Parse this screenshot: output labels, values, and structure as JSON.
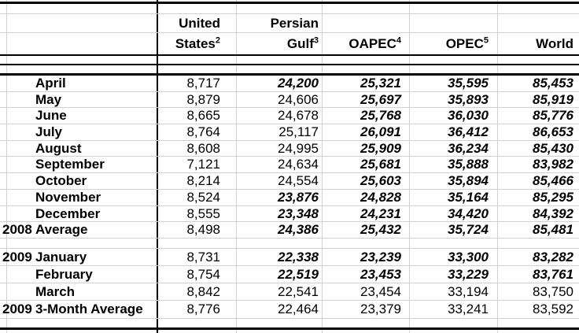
{
  "header": {
    "columns": [
      {
        "line1": "United",
        "line2": "States",
        "superscript": "2"
      },
      {
        "line1": "Persian",
        "line2": "Gulf",
        "superscript": "3"
      },
      {
        "line1": "",
        "line2": "OAPEC",
        "superscript": "4"
      },
      {
        "line1": "",
        "line2": "OPEC",
        "superscript": "5"
      },
      {
        "line1": "",
        "line2": "World",
        "superscript": ""
      }
    ]
  },
  "rows": [
    {
      "group": "2008",
      "year": "",
      "month": "April",
      "values": [
        "8,717",
        "24,200",
        "25,321",
        "35,595",
        "85,453"
      ],
      "emphasis": [
        false,
        true,
        true,
        true,
        true
      ]
    },
    {
      "group": "2008",
      "year": "",
      "month": "May",
      "values": [
        "8,879",
        "24,606",
        "25,697",
        "35,893",
        "85,919"
      ],
      "emphasis": [
        false,
        false,
        true,
        true,
        true
      ]
    },
    {
      "group": "2008",
      "year": "",
      "month": "June",
      "values": [
        "8,665",
        "24,678",
        "25,768",
        "36,030",
        "85,776"
      ],
      "emphasis": [
        false,
        false,
        true,
        true,
        true
      ]
    },
    {
      "group": "2008",
      "year": "",
      "month": "July",
      "values": [
        "8,764",
        "25,117",
        "26,091",
        "36,412",
        "86,653"
      ],
      "emphasis": [
        false,
        false,
        true,
        true,
        true
      ]
    },
    {
      "group": "2008",
      "year": "",
      "month": "August",
      "values": [
        "8,608",
        "24,995",
        "25,909",
        "36,234",
        "85,430"
      ],
      "emphasis": [
        false,
        false,
        true,
        true,
        true
      ]
    },
    {
      "group": "2008",
      "year": "",
      "month": "September",
      "values": [
        "7,121",
        "24,634",
        "25,681",
        "35,888",
        "83,982"
      ],
      "emphasis": [
        false,
        false,
        true,
        true,
        true
      ]
    },
    {
      "group": "2008",
      "year": "",
      "month": "October",
      "values": [
        "8,214",
        "24,554",
        "25,603",
        "35,894",
        "85,466"
      ],
      "emphasis": [
        false,
        false,
        true,
        true,
        true
      ]
    },
    {
      "group": "2008",
      "year": "",
      "month": "November",
      "values": [
        "8,524",
        "23,876",
        "24,828",
        "35,164",
        "85,295"
      ],
      "emphasis": [
        false,
        true,
        true,
        true,
        true
      ]
    },
    {
      "group": "2008",
      "year": "",
      "month": "December",
      "values": [
        "8,555",
        "23,348",
        "24,231",
        "34,420",
        "84,392"
      ],
      "emphasis": [
        false,
        true,
        true,
        true,
        true
      ]
    },
    {
      "group": "2008",
      "year": "2008",
      "month": "Average",
      "values": [
        "8,498",
        "24,386",
        "25,432",
        "35,724",
        "85,481"
      ],
      "emphasis": [
        false,
        true,
        true,
        true,
        true
      ]
    },
    {
      "group": "2009",
      "year": "2009",
      "month": "January",
      "values": [
        "8,731",
        "22,338",
        "23,239",
        "33,300",
        "83,282"
      ],
      "emphasis": [
        false,
        true,
        true,
        true,
        true
      ]
    },
    {
      "group": "2009",
      "year": "",
      "month": "February",
      "values": [
        "8,754",
        "22,519",
        "23,453",
        "33,229",
        "83,761"
      ],
      "emphasis": [
        false,
        true,
        true,
        true,
        true
      ]
    },
    {
      "group": "2009",
      "year": "",
      "month": "March",
      "values": [
        "8,842",
        "22,541",
        "23,454",
        "33,194",
        "83,750"
      ],
      "emphasis": [
        false,
        false,
        false,
        false,
        false
      ]
    },
    {
      "group": "2009",
      "year": "2009",
      "month": "3-Month Average",
      "values": [
        "8,776",
        "22,464",
        "23,379",
        "33,241",
        "83,592"
      ],
      "emphasis": [
        false,
        false,
        false,
        false,
        false
      ]
    }
  ],
  "colors": {
    "gridline": "#ccd2dc",
    "border": "#000000",
    "background": "#ffffff",
    "text": "#000000"
  }
}
